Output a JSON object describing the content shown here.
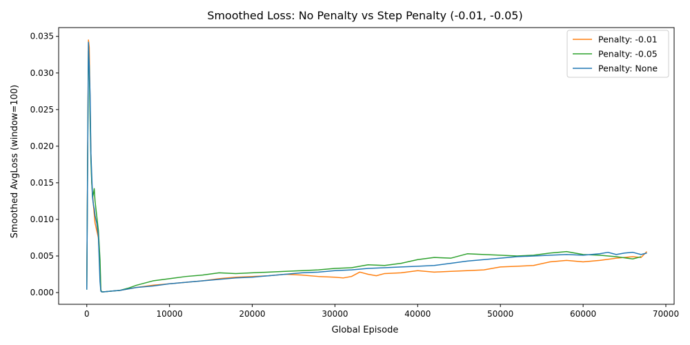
{
  "chart_data": {
    "type": "line",
    "title": "Smoothed Loss: No Penalty vs Step Penalty (-0.01, -0.05)",
    "xlabel": "Global Episode",
    "ylabel": "Smoothed AvgLoss (window=100)",
    "xlim": [
      -3400,
      71000
    ],
    "ylim": [
      -0.0016,
      0.0362
    ],
    "xticks": [
      0,
      10000,
      20000,
      30000,
      40000,
      50000,
      60000,
      70000
    ],
    "xtick_labels": [
      "0",
      "10000",
      "20000",
      "30000",
      "40000",
      "50000",
      "60000",
      "70000"
    ],
    "yticks": [
      0.0,
      0.005,
      0.01,
      0.015,
      0.02,
      0.025,
      0.03,
      0.035
    ],
    "ytick_labels": [
      "0.000",
      "0.005",
      "0.010",
      "0.015",
      "0.020",
      "0.025",
      "0.030",
      "0.035"
    ],
    "grid": false,
    "legend_position": "top-right",
    "series": [
      {
        "name": "Penalty: -0.01",
        "color": "#ff7f0e",
        "x": [
          0,
          100,
          200,
          300,
          400,
          500,
          600,
          800,
          1000,
          1200,
          1400,
          1600,
          1700,
          1800,
          2000,
          3000,
          4000,
          5000,
          6000,
          8000,
          10000,
          12000,
          14000,
          16000,
          18000,
          20000,
          22000,
          24000,
          26000,
          28000,
          30000,
          31000,
          32000,
          33000,
          34000,
          35000,
          36000,
          38000,
          40000,
          42000,
          44000,
          46000,
          48000,
          50000,
          52000,
          54000,
          56000,
          58000,
          60000,
          62000,
          64000,
          66000,
          67000,
          67700
        ],
        "y": [
          0.0005,
          0.018,
          0.0345,
          0.0335,
          0.026,
          0.019,
          0.015,
          0.012,
          0.0095,
          0.0085,
          0.0075,
          0.0035,
          0.0002,
          0.0001,
          0.0001,
          0.0002,
          0.0003,
          0.0005,
          0.0007,
          0.001,
          0.0012,
          0.0014,
          0.0016,
          0.0019,
          0.0021,
          0.0022,
          0.0023,
          0.0025,
          0.0024,
          0.0022,
          0.0021,
          0.002,
          0.0022,
          0.0028,
          0.0025,
          0.0023,
          0.0026,
          0.0027,
          0.003,
          0.0028,
          0.0029,
          0.003,
          0.0031,
          0.0035,
          0.0036,
          0.0037,
          0.0042,
          0.0044,
          0.0042,
          0.0044,
          0.0047,
          0.0049,
          0.0048,
          0.0056
        ]
      },
      {
        "name": "Penalty: -0.05",
        "color": "#2ca02c",
        "x": [
          0,
          100,
          200,
          300,
          400,
          500,
          600,
          700,
          800,
          900,
          1000,
          1200,
          1400,
          1600,
          1700,
          1800,
          2000,
          3000,
          4000,
          5000,
          6000,
          8000,
          10000,
          12000,
          14000,
          16000,
          18000,
          20000,
          22000,
          24000,
          26000,
          28000,
          30000,
          32000,
          33000,
          34000,
          36000,
          38000,
          40000,
          42000,
          44000,
          46000,
          48000,
          50000,
          52000,
          54000,
          56000,
          58000,
          60000,
          62000,
          64000,
          66000,
          67000
        ],
        "y": [
          0.0004,
          0.017,
          0.033,
          0.031,
          0.024,
          0.018,
          0.015,
          0.013,
          0.0135,
          0.0142,
          0.0125,
          0.0105,
          0.0085,
          0.0045,
          0.0004,
          0.0001,
          0.0001,
          0.0002,
          0.0003,
          0.0006,
          0.001,
          0.0016,
          0.0019,
          0.0022,
          0.0024,
          0.0027,
          0.0026,
          0.0027,
          0.0028,
          0.0029,
          0.003,
          0.0031,
          0.0033,
          0.0034,
          0.0036,
          0.0038,
          0.0037,
          0.004,
          0.0045,
          0.0048,
          0.0047,
          0.0053,
          0.0052,
          0.0051,
          0.005,
          0.0051,
          0.0054,
          0.0056,
          0.0052,
          0.0051,
          0.0049,
          0.0046,
          0.0049
        ]
      },
      {
        "name": "Penalty: None",
        "color": "#1f77b4",
        "x": [
          0,
          100,
          200,
          300,
          400,
          500,
          600,
          700,
          800,
          900,
          1000,
          1200,
          1400,
          1600,
          1700,
          1800,
          2000,
          3000,
          4000,
          5000,
          6000,
          8000,
          10000,
          12000,
          14000,
          16000,
          18000,
          20000,
          22000,
          24000,
          26000,
          28000,
          30000,
          32000,
          34000,
          36000,
          38000,
          40000,
          42000,
          44000,
          46000,
          48000,
          50000,
          52000,
          54000,
          56000,
          58000,
          60000,
          62000,
          63000,
          64000,
          65000,
          66000,
          67000,
          67700
        ],
        "y": [
          0.0004,
          0.017,
          0.0342,
          0.031,
          0.027,
          0.019,
          0.016,
          0.013,
          0.012,
          0.0115,
          0.0105,
          0.0095,
          0.0078,
          0.0015,
          0.0002,
          0.0001,
          0.0001,
          0.0002,
          0.0003,
          0.0005,
          0.0007,
          0.0009,
          0.0012,
          0.0014,
          0.0016,
          0.0018,
          0.002,
          0.0021,
          0.0023,
          0.0025,
          0.0027,
          0.0028,
          0.003,
          0.0031,
          0.0033,
          0.0034,
          0.0035,
          0.0036,
          0.0037,
          0.004,
          0.0043,
          0.0045,
          0.0047,
          0.0049,
          0.005,
          0.0051,
          0.0052,
          0.0051,
          0.0053,
          0.0055,
          0.0052,
          0.0054,
          0.0055,
          0.0052,
          0.0054
        ]
      }
    ]
  }
}
